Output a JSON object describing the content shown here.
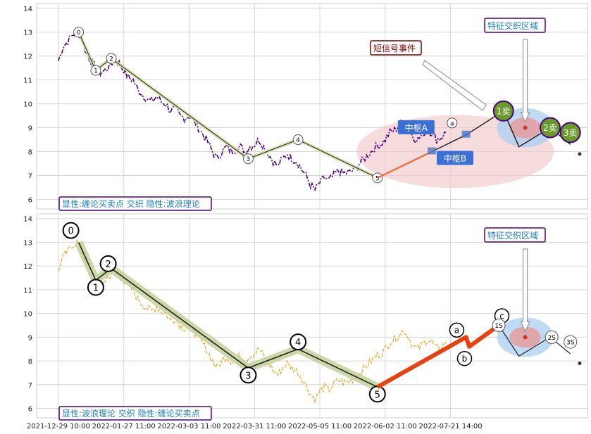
{
  "chart_data": [
    {
      "type": "line",
      "panel": "top",
      "title": "",
      "xlabel": "",
      "ylabel": "",
      "ylim": [
        5.6,
        14.2
      ],
      "yticks": [
        6,
        7,
        8,
        9,
        10,
        11,
        12,
        13,
        14
      ],
      "grid": true,
      "legend_text": "显性:缠论买卖点 交织 隐性:波浪理论",
      "price_color": "#4b0082",
      "price_series": [
        [
          0,
          11.8
        ],
        [
          3,
          12.4
        ],
        [
          6,
          12.6
        ],
        [
          9,
          12.9
        ],
        [
          12,
          13.0
        ],
        [
          15,
          12.7
        ],
        [
          18,
          12.1
        ],
        [
          21,
          11.8
        ],
        [
          24,
          11.5
        ],
        [
          27,
          11.3
        ],
        [
          30,
          11.4
        ],
        [
          33,
          11.6
        ],
        [
          36,
          11.8
        ],
        [
          39,
          11.7
        ],
        [
          42,
          11.4
        ],
        [
          45,
          11.1
        ],
        [
          48,
          11.0
        ],
        [
          51,
          10.6
        ],
        [
          54,
          10.4
        ],
        [
          57,
          10.2
        ],
        [
          60,
          10.1
        ],
        [
          63,
          10.3
        ],
        [
          66,
          10.1
        ],
        [
          69,
          10.0
        ],
        [
          72,
          9.7
        ],
        [
          75,
          9.8
        ],
        [
          78,
          9.5
        ],
        [
          81,
          9.4
        ],
        [
          84,
          9.5
        ],
        [
          87,
          9.3
        ],
        [
          90,
          9.0
        ],
        [
          93,
          8.7
        ],
        [
          96,
          8.4
        ],
        [
          99,
          8.0
        ],
        [
          102,
          7.7
        ],
        [
          105,
          8.0
        ],
        [
          108,
          8.2
        ],
        [
          111,
          8.0
        ],
        [
          114,
          8.1
        ],
        [
          117,
          8.2
        ],
        [
          120,
          8.0
        ],
        [
          123,
          8.2
        ],
        [
          126,
          8.3
        ],
        [
          129,
          8.5
        ],
        [
          132,
          8.2
        ],
        [
          135,
          7.9
        ],
        [
          138,
          7.6
        ],
        [
          141,
          7.4
        ],
        [
          144,
          7.7
        ],
        [
          147,
          7.9
        ],
        [
          150,
          7.7
        ],
        [
          153,
          7.6
        ],
        [
          156,
          7.3
        ],
        [
          159,
          7.0
        ],
        [
          162,
          6.6
        ],
        [
          165,
          6.4
        ],
        [
          168,
          6.7
        ],
        [
          171,
          6.9
        ],
        [
          174,
          6.8
        ],
        [
          177,
          7.0
        ],
        [
          180,
          7.2
        ],
        [
          183,
          7.1
        ],
        [
          186,
          7.1
        ],
        [
          189,
          7.2
        ],
        [
          192,
          7.4
        ],
        [
          195,
          7.6
        ],
        [
          198,
          7.8
        ],
        [
          201,
          8.0
        ],
        [
          204,
          8.2
        ],
        [
          207,
          8.3
        ],
        [
          210,
          8.5
        ],
        [
          213,
          8.8
        ],
        [
          216,
          8.9
        ],
        [
          219,
          9.1
        ],
        [
          222,
          9.3
        ],
        [
          225,
          9.0
        ],
        [
          228,
          8.6
        ],
        [
          231,
          8.5
        ],
        [
          234,
          8.7
        ],
        [
          237,
          8.9
        ],
        [
          240,
          8.8
        ],
        [
          243,
          8.5
        ],
        [
          246,
          8.6
        ],
        [
          249,
          8.8
        ]
      ],
      "wave_path": [
        [
          13,
          13.0
        ],
        [
          24,
          11.4
        ],
        [
          34,
          11.9
        ],
        [
          122,
          7.7
        ],
        [
          154,
          8.5
        ],
        [
          205,
          6.9
        ]
      ],
      "wave_labels": [
        {
          "label": "0",
          "x": 13,
          "y": 13.0
        },
        {
          "label": "1",
          "x": 24,
          "y": 11.4
        },
        {
          "label": "2",
          "x": 34,
          "y": 11.9
        },
        {
          "label": "3",
          "x": 122,
          "y": 7.7
        },
        {
          "label": "4",
          "x": 154,
          "y": 8.5
        },
        {
          "label": "5",
          "x": 205,
          "y": 6.9
        }
      ],
      "trend_up": [
        [
          205,
          6.9
        ],
        [
          240,
          8.0
        ]
      ],
      "center_A": {
        "label": "中枢A",
        "x": 240,
        "y": 8.0
      },
      "center_B": {
        "label": "中枢B",
        "x": 262,
        "y": 8.7
      },
      "sell_points": [
        {
          "label": "1卖",
          "x": 286,
          "y": 9.7
        },
        {
          "label": "2卖",
          "x": 316,
          "y": 9.0
        },
        {
          "label": "3卖",
          "x": 329,
          "y": 8.8
        }
      ],
      "small_labels": [
        {
          "label": "a",
          "x": 253,
          "y": 9.2
        }
      ],
      "signal_label": "短信号事件",
      "feature_label": "特征交织区域"
    },
    {
      "type": "line",
      "panel": "bottom",
      "title": "",
      "xlabel": "",
      "ylabel": "",
      "ylim": [
        5.6,
        14.2
      ],
      "yticks": [
        6,
        7,
        8,
        9,
        10,
        11,
        12,
        13,
        14
      ],
      "grid": true,
      "legend_text": "显性:波浪理论 交织 隐性:缠论买卖点",
      "price_color": "#e8a820",
      "wave_path": [
        [
          13,
          13.0
        ],
        [
          24,
          11.4
        ],
        [
          34,
          11.9
        ],
        [
          122,
          7.7
        ],
        [
          154,
          8.5
        ],
        [
          205,
          6.9
        ]
      ],
      "wave_labels": [
        {
          "label": "0",
          "x": 8,
          "y": 13.5
        },
        {
          "label": "1",
          "x": 24,
          "y": 11.1
        },
        {
          "label": "2",
          "x": 32,
          "y": 12.1
        },
        {
          "label": "3",
          "x": 122,
          "y": 7.4
        },
        {
          "label": "4",
          "x": 154,
          "y": 8.8
        },
        {
          "label": "5",
          "x": 205,
          "y": 6.6
        }
      ],
      "abc_path": [
        [
          205,
          6.9
        ],
        [
          262,
          9.0
        ],
        [
          264,
          8.6
        ],
        [
          283,
          9.5
        ]
      ],
      "abc_labels": [
        {
          "label": "a",
          "x": 256,
          "y": 9.3
        },
        {
          "label": "b",
          "x": 261,
          "y": 8.1
        },
        {
          "label": "c",
          "x": 285,
          "y": 9.9
        }
      ],
      "sell_points": [
        {
          "label": "1S",
          "x": 283,
          "y": 9.5
        },
        {
          "label": "2S",
          "x": 317,
          "y": 9.0
        },
        {
          "label": "3S",
          "x": 329,
          "y": 8.8
        }
      ],
      "feature_label": "特征交织区域"
    }
  ],
  "x_tick_labels": [
    "2021-12-29 10:00",
    "2022-01-27 11:00",
    "2022-03-03 11:00",
    "2022-03-31 11:00",
    "2022-05-05 11:00",
    "2022-06-02 11:00",
    "2022-07-21 14:00"
  ],
  "x_tick_values": [
    0,
    42,
    84,
    126,
    168,
    210,
    252
  ],
  "xlim": [
    -14,
    340
  ]
}
